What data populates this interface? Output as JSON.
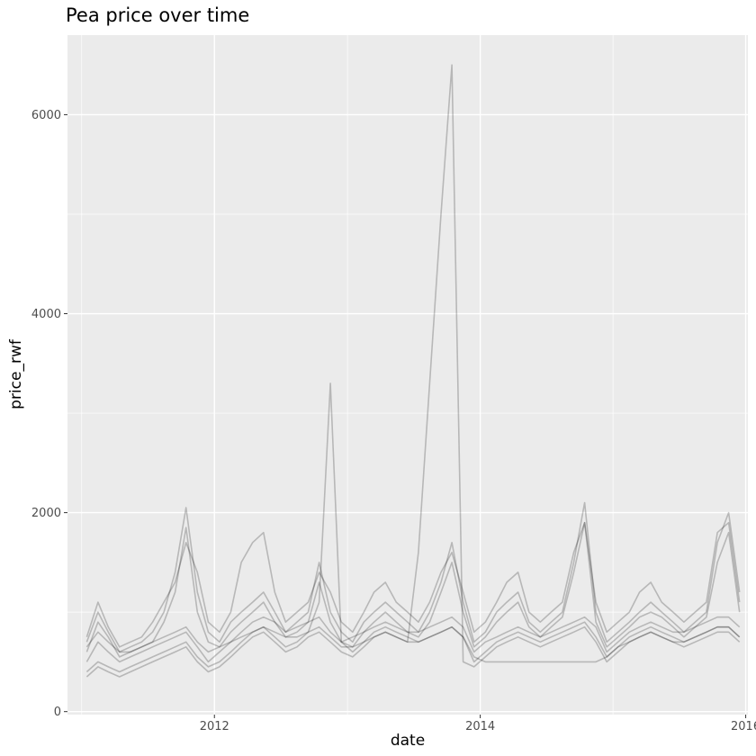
{
  "chart_data": {
    "type": "line",
    "title": "Pea price over time",
    "xlabel": "date",
    "ylabel": "price_rwf",
    "xlim": [
      "2010-11-23",
      "2016-01-07"
    ],
    "ylim": [
      -30,
      6800
    ],
    "x_ticks": [
      {
        "label": "2012",
        "value": "2012-01-01"
      },
      {
        "label": "2014",
        "value": "2014-01-01"
      },
      {
        "label": "2016",
        "value": "2016-01-01"
      }
    ],
    "y_ticks": [
      {
        "label": "0",
        "value": 0
      },
      {
        "label": "2000",
        "value": 2000
      },
      {
        "label": "4000",
        "value": 4000
      },
      {
        "label": "6000",
        "value": 6000
      }
    ],
    "x_minor": [
      "2011-01-01",
      "2013-01-01",
      "2015-01-01"
    ],
    "y_minor": [
      1000,
      3000,
      5000
    ],
    "grid": true,
    "line_color": "#000000",
    "line_alpha": 0.22,
    "panel_background": "#ebebeb",
    "grid_color": "#ffffff",
    "x": [
      "2011-01-15",
      "2011-02-15",
      "2011-03-15",
      "2011-04-15",
      "2011-05-15",
      "2011-06-15",
      "2011-07-15",
      "2011-08-15",
      "2011-09-15",
      "2011-10-15",
      "2011-11-15",
      "2011-12-15",
      "2012-01-15",
      "2012-02-15",
      "2012-03-15",
      "2012-04-15",
      "2012-05-15",
      "2012-06-15",
      "2012-07-15",
      "2012-08-15",
      "2012-09-15",
      "2012-10-15",
      "2012-11-15",
      "2012-12-15",
      "2013-01-15",
      "2013-02-15",
      "2013-03-15",
      "2013-04-15",
      "2013-05-15",
      "2013-06-15",
      "2013-07-15",
      "2013-08-15",
      "2013-09-15",
      "2013-10-15",
      "2013-11-15",
      "2013-12-15",
      "2014-01-15",
      "2014-02-15",
      "2014-03-15",
      "2014-04-15",
      "2014-05-15",
      "2014-06-15",
      "2014-07-15",
      "2014-08-15",
      "2014-09-15",
      "2014-10-15",
      "2014-11-15",
      "2014-12-15",
      "2015-01-15",
      "2015-02-15",
      "2015-03-15",
      "2015-04-15",
      "2015-05-15",
      "2015-06-15",
      "2015-07-15",
      "2015-08-15",
      "2015-09-15",
      "2015-10-15",
      "2015-11-15",
      "2015-12-15"
    ],
    "series": [
      {
        "values": [
          700,
          1000,
          800,
          600,
          650,
          700,
          800,
          1000,
          1400,
          2050,
          1200,
          800,
          700,
          900,
          1000,
          1100,
          1200,
          1000,
          800,
          900,
          1000,
          1500,
          1000,
          800,
          700,
          900,
          1000,
          1100,
          1000,
          900,
          800,
          1000,
          1300,
          1700,
          1100,
          700,
          800,
          1000,
          1100,
          1200,
          900,
          800,
          900,
          1000,
          1500,
          2100,
          1000,
          700,
          800,
          900,
          1000,
          1100,
          1000,
          900,
          800,
          900,
          1000,
          1700,
          2000,
          1200
        ]
      },
      {
        "values": [
          600,
          900,
          750,
          550,
          600,
          650,
          700,
          900,
          1200,
          1850,
          1000,
          700,
          650,
          800,
          900,
          1000,
          1100,
          900,
          750,
          800,
          900,
          1300,
          900,
          700,
          650,
          800,
          900,
          1000,
          900,
          800,
          750,
          900,
          1200,
          1500,
          1000,
          650,
          750,
          900,
          1000,
          1100,
          850,
          750,
          850,
          950,
          1400,
          1900,
          900,
          650,
          750,
          850,
          950,
          1000,
          950,
          850,
          750,
          850,
          950,
          1500,
          1800,
          1000
        ]
      },
      {
        "values": [
          500,
          700,
          600,
          500,
          550,
          600,
          650,
          700,
          750,
          800,
          650,
          500,
          600,
          700,
          800,
          900,
          950,
          900,
          800,
          850,
          900,
          950,
          800,
          700,
          750,
          800,
          850,
          900,
          850,
          800,
          800,
          850,
          900,
          950,
          850,
          600,
          700,
          750,
          800,
          850,
          800,
          750,
          800,
          850,
          900,
          950,
          850,
          600,
          700,
          800,
          850,
          900,
          850,
          800,
          800,
          850,
          900,
          950,
          950,
          850
        ]
      },
      {
        "values": [
          400,
          500,
          450,
          400,
          450,
          500,
          550,
          600,
          650,
          700,
          550,
          450,
          500,
          600,
          700,
          800,
          850,
          750,
          650,
          700,
          800,
          1100,
          3300,
          700,
          600,
          700,
          800,
          850,
          800,
          750,
          700,
          750,
          800,
          850,
          750,
          500,
          600,
          700,
          750,
          800,
          750,
          700,
          750,
          800,
          850,
          900,
          750,
          550,
          650,
          750,
          800,
          850,
          800,
          750,
          700,
          750,
          800,
          850,
          850,
          750
        ]
      },
      {
        "values": [
          350,
          450,
          400,
          350,
          400,
          450,
          500,
          550,
          600,
          650,
          500,
          400,
          450,
          550,
          650,
          750,
          800,
          700,
          600,
          650,
          750,
          800,
          700,
          600,
          550,
          650,
          750,
          800,
          750,
          700,
          1600,
          3300,
          5000,
          6500,
          500,
          450,
          550,
          650,
          700,
          750,
          700,
          650,
          700,
          750,
          800,
          850,
          700,
          500,
          600,
          700,
          750,
          800,
          750,
          700,
          650,
          700,
          750,
          800,
          800,
          700
        ]
      },
      {
        "values": [
          750,
          1100,
          850,
          650,
          700,
          750,
          900,
          1100,
          1300,
          1700,
          1400,
          900,
          800,
          1000,
          1500,
          1700,
          1800,
          1200,
          900,
          1000,
          1100,
          1400,
          1200,
          900,
          800,
          1000,
          1200,
          1300,
          1100,
          1000,
          900,
          1100,
          1400,
          1600,
          1200,
          800,
          900,
          1100,
          1300,
          1400,
          1000,
          900,
          1000,
          1100,
          1600,
          1900,
          1100,
          800,
          900,
          1000,
          1200,
          1300,
          1100,
          1000,
          900,
          1000,
          1100,
          1800,
          1900,
          1100
        ]
      },
      {
        "values": [
          650,
          800,
          700,
          600,
          600,
          650,
          700,
          750,
          800,
          850,
          700,
          600,
          650,
          700,
          750,
          800,
          850,
          800,
          750,
          750,
          800,
          850,
          750,
          650,
          650,
          700,
          750,
          800,
          750,
          700,
          700,
          750,
          800,
          850,
          750,
          550,
          500,
          500,
          500,
          500,
          500,
          500,
          500,
          500,
          500,
          500,
          500,
          550,
          650,
          700,
          750,
          800,
          750,
          700,
          700,
          750,
          800,
          850,
          850,
          750
        ]
      }
    ]
  }
}
